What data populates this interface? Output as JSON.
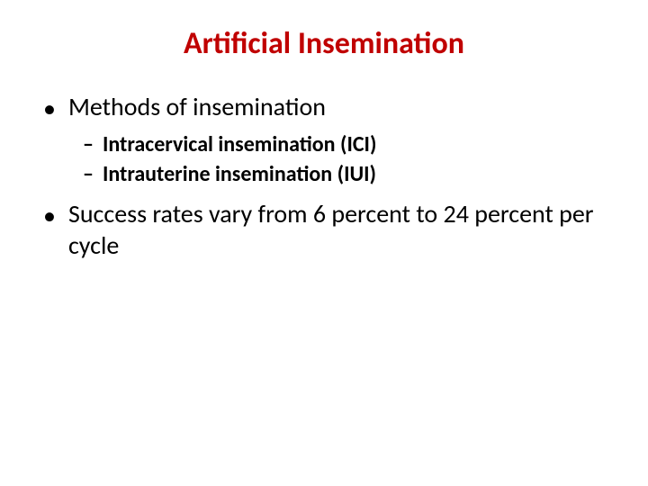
{
  "slide": {
    "title": "Artificial Insemination",
    "title_color": "#c00000",
    "title_fontsize": 34,
    "body_color": "#000000",
    "l1_fontsize": 28,
    "l2_fontsize": 24,
    "background_color": "#ffffff",
    "bullets": [
      {
        "text": "Methods of insemination",
        "sub": [
          "Intracervical insemination (ICI)",
          "Intrauterine insemination (IUI)"
        ]
      },
      {
        "text": "Success rates vary from 6 percent to 24 percent per cycle",
        "sub": []
      }
    ]
  }
}
